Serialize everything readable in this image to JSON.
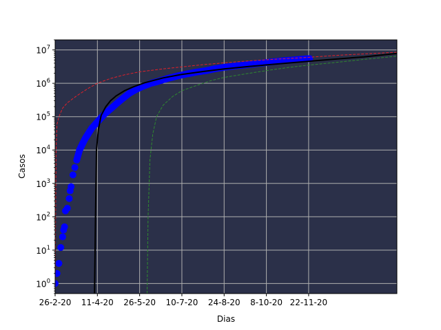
{
  "chart_data": {
    "type": "scatter",
    "title": "",
    "xlabel": "Dias",
    "ylabel": "Casos",
    "yscale": "log",
    "ylim": [
      0.5,
      20000000
    ],
    "xlim": [
      "2020-02-26",
      "2021-02-24"
    ],
    "grid": true,
    "plot_background": "#2b3049",
    "grid_color": "#b0b0b0",
    "x_ticks": [
      {
        "date": "2020-02-26",
        "label": "26-2-20"
      },
      {
        "date": "2020-04-11",
        "label": "11-4-20"
      },
      {
        "date": "2020-05-26",
        "label": "26-5-20"
      },
      {
        "date": "2020-07-10",
        "label": "10-7-20"
      },
      {
        "date": "2020-08-24",
        "label": "24-8-20"
      },
      {
        "date": "2020-10-08",
        "label": "8-10-20"
      },
      {
        "date": "2020-11-22",
        "label": "22-11-20"
      }
    ],
    "y_ticks": [
      {
        "value": 1,
        "base": "10",
        "exp": "0"
      },
      {
        "value": 10,
        "base": "10",
        "exp": "1"
      },
      {
        "value": 100,
        "base": "10",
        "exp": "2"
      },
      {
        "value": 1000,
        "base": "10",
        "exp": "3"
      },
      {
        "value": 10000,
        "base": "10",
        "exp": "4"
      },
      {
        "value": 100000,
        "base": "10",
        "exp": "5"
      },
      {
        "value": 1000000,
        "base": "10",
        "exp": "6"
      },
      {
        "value": 10000000,
        "base": "10",
        "exp": "7"
      }
    ],
    "series": [
      {
        "style": "scatter",
        "color": "#0000ff",
        "x": [
          "2020-02-26",
          "2020-02-28",
          "2020-03-01",
          "2020-03-03",
          "2020-03-05",
          "2020-03-06",
          "2020-03-07",
          "2020-03-08",
          "2020-03-10",
          "2020-03-12",
          "2020-03-13",
          "2020-03-14",
          "2020-03-16",
          "2020-03-18",
          "2020-03-20",
          "2020-03-23",
          "2020-03-26",
          "2020-03-29",
          "2020-04-01",
          "2020-04-05",
          "2020-04-09",
          "2020-04-13",
          "2020-04-18",
          "2020-04-25",
          "2020-05-01",
          "2020-05-08",
          "2020-05-15",
          "2020-05-22",
          "2020-05-29",
          "2020-06-07",
          "2020-06-15",
          "2020-06-25",
          "2020-07-05",
          "2020-07-15",
          "2020-07-25",
          "2020-08-05",
          "2020-08-15",
          "2020-08-25",
          "2020-09-05",
          "2020-09-15",
          "2020-09-25",
          "2020-10-05",
          "2020-10-15",
          "2020-10-25",
          "2020-11-05",
          "2020-11-15",
          "2020-11-23"
        ],
        "y": [
          1,
          2,
          4,
          12,
          25,
          40,
          50,
          150,
          180,
          350,
          600,
          800,
          1800,
          3000,
          5000,
          10000,
          15000,
          22000,
          30000,
          45000,
          60000,
          80000,
          115000,
          170000,
          240000,
          350000,
          500000,
          650000,
          800000,
          1000000,
          1150000,
          1400000,
          1650000,
          1900000,
          2150000,
          2400000,
          2750000,
          3050000,
          3300000,
          3550000,
          3800000,
          4100000,
          4400000,
          4700000,
          5000000,
          5300000,
          5500000
        ]
      },
      {
        "style": "line",
        "color": "#000000",
        "x": [
          "2020-04-08",
          "2020-04-09",
          "2020-04-10",
          "2020-04-12",
          "2020-04-15",
          "2020-04-20",
          "2020-04-25",
          "2020-05-01",
          "2020-05-10",
          "2020-05-20",
          "2020-06-01",
          "2020-06-20",
          "2020-07-10",
          "2020-08-01",
          "2020-08-24",
          "2020-09-20",
          "2020-10-20",
          "2020-11-20",
          "2020-12-20",
          "2021-01-20",
          "2021-02-24"
        ],
        "y": [
          0.5,
          100,
          10000,
          40000,
          110000,
          200000,
          300000,
          420000,
          600000,
          800000,
          1050000,
          1450000,
          1850000,
          2250000,
          2700000,
          3200000,
          3800000,
          4500000,
          5300000,
          6200000,
          7800000
        ]
      },
      {
        "style": "dashed",
        "color": "#e0202a",
        "x": [
          "2020-02-26",
          "2020-02-27",
          "2020-02-28",
          "2020-03-01",
          "2020-03-05",
          "2020-03-10",
          "2020-03-20",
          "2020-04-01",
          "2020-04-11",
          "2020-04-25",
          "2020-05-10",
          "2020-05-26",
          "2020-06-20",
          "2020-07-10",
          "2020-08-01",
          "2020-08-24",
          "2020-09-20",
          "2020-10-20",
          "2020-11-22",
          "2020-12-20",
          "2021-01-20",
          "2021-02-24"
        ],
        "y": [
          0.5,
          10000,
          60000,
          100000,
          180000,
          260000,
          420000,
          700000,
          1000000,
          1400000,
          1800000,
          2200000,
          2700000,
          3100000,
          3600000,
          4100000,
          4700000,
          5300000,
          6000000,
          6800000,
          7600000,
          8500000
        ]
      },
      {
        "style": "dashed",
        "color": "#2f8a2f",
        "x": [
          "2020-06-03",
          "2020-06-04",
          "2020-06-06",
          "2020-06-09",
          "2020-06-13",
          "2020-06-20",
          "2020-06-30",
          "2020-07-10",
          "2020-07-25",
          "2020-08-10",
          "2020-08-24",
          "2020-09-15",
          "2020-10-08",
          "2020-11-01",
          "2020-11-22",
          "2020-12-20",
          "2021-01-20",
          "2021-02-24"
        ],
        "y": [
          0.5,
          100,
          5000,
          30000,
          100000,
          220000,
          400000,
          600000,
          850000,
          1200000,
          1500000,
          1900000,
          2400000,
          3000000,
          3500000,
          4200000,
          5200000,
          6500000
        ]
      }
    ]
  }
}
